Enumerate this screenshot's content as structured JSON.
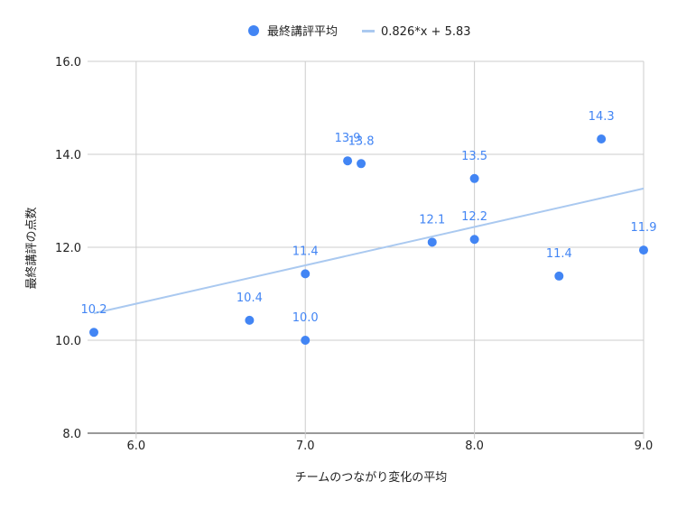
{
  "chart_data": {
    "type": "scatter",
    "xlabel": "チームのつながり変化の平均",
    "ylabel": "最終講評の点数",
    "xlim": [
      5.75,
      9.0
    ],
    "ylim": [
      8.0,
      16.0
    ],
    "x_ticks": [
      "6.0",
      "7.0",
      "8.0",
      "9.0"
    ],
    "y_ticks": [
      "8.0",
      "10.0",
      "12.0",
      "14.0",
      "16.0"
    ],
    "grid": true,
    "legend_position": "top",
    "series": [
      {
        "name": "最終講評平均",
        "color": "#4285f4",
        "points": [
          {
            "x": 5.75,
            "y": 10.17,
            "label": "10.2"
          },
          {
            "x": 6.67,
            "y": 10.43,
            "label": "10.4"
          },
          {
            "x": 7.0,
            "y": 10.0,
            "label": "10.0"
          },
          {
            "x": 7.0,
            "y": 11.43,
            "label": "11.4"
          },
          {
            "x": 7.25,
            "y": 13.86,
            "label": "13.9"
          },
          {
            "x": 7.33,
            "y": 13.8,
            "label": "13.8"
          },
          {
            "x": 7.75,
            "y": 12.11,
            "label": "12.1"
          },
          {
            "x": 8.0,
            "y": 13.48,
            "label": "13.5"
          },
          {
            "x": 8.0,
            "y": 12.17,
            "label": "12.2"
          },
          {
            "x": 8.5,
            "y": 11.38,
            "label": "11.4"
          },
          {
            "x": 8.75,
            "y": 14.33,
            "label": "14.3"
          },
          {
            "x": 9.0,
            "y": 11.94,
            "label": "11.9"
          }
        ]
      }
    ],
    "trendline": {
      "name": "0.826*x + 5.83",
      "slope": 0.826,
      "intercept": 5.83,
      "color": "#aac9f0"
    }
  }
}
